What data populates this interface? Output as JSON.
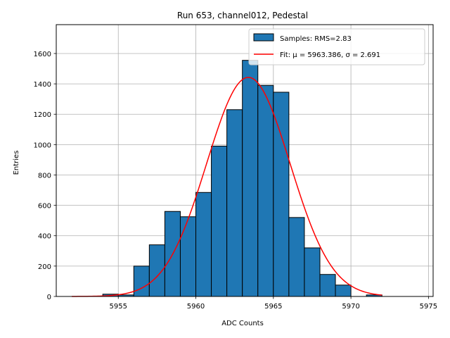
{
  "chart_data": {
    "type": "bar",
    "title": "Run 653, channel012, Pedestal",
    "xlabel": "ADC Counts",
    "ylabel": "Entries",
    "xlim": [
      5951,
      5975.3
    ],
    "ylim": [
      0,
      1790
    ],
    "xticks": [
      5955,
      5960,
      5965,
      5970,
      5975
    ],
    "yticks": [
      0,
      200,
      400,
      600,
      800,
      1000,
      1200,
      1400,
      1600
    ],
    "grid": true,
    "legend_position": "top-right",
    "bin_width": 1,
    "series": [
      {
        "name": "Samples: RMS=2.83",
        "kind": "histogram",
        "color": "#1f77b4",
        "edgecolor": "#000000",
        "bins": [
          {
            "left": 5952,
            "count": 0
          },
          {
            "left": 5953,
            "count": 0
          },
          {
            "left": 5954,
            "count": 15
          },
          {
            "left": 5955,
            "count": 10
          },
          {
            "left": 5956,
            "count": 200
          },
          {
            "left": 5957,
            "count": 340
          },
          {
            "left": 5958,
            "count": 560
          },
          {
            "left": 5959,
            "count": 525
          },
          {
            "left": 5960,
            "count": 685
          },
          {
            "left": 5961,
            "count": 990
          },
          {
            "left": 5962,
            "count": 1230
          },
          {
            "left": 5963,
            "count": 1555
          },
          {
            "left": 5964,
            "count": 1390
          },
          {
            "left": 5965,
            "count": 1345
          },
          {
            "left": 5966,
            "count": 520
          },
          {
            "left": 5967,
            "count": 320
          },
          {
            "left": 5968,
            "count": 145
          },
          {
            "left": 5969,
            "count": 75
          },
          {
            "left": 5970,
            "count": 0
          },
          {
            "left": 5971,
            "count": 10
          },
          {
            "left": 5972,
            "count": 0
          },
          {
            "left": 5973,
            "count": 0
          }
        ]
      },
      {
        "name": "Fit: μ = 5963.386, σ = 2.691",
        "kind": "gaussian-fit",
        "color": "#ff0000",
        "mu": 5963.386,
        "sigma": 2.691,
        "amplitude": 1443,
        "x_range": [
          5952,
          5972
        ]
      }
    ]
  }
}
